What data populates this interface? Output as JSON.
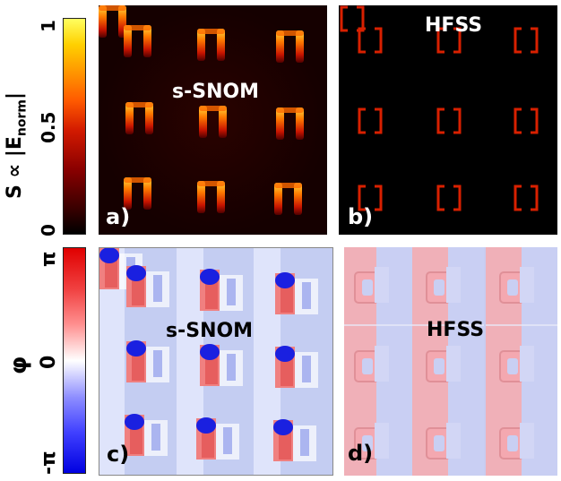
{
  "top_colorbar": {
    "axis_label": "S ∝ |E",
    "axis_sub": "norm",
    "axis_suffix": "|",
    "ticks": [
      "1",
      "0.5",
      "0"
    ]
  },
  "bottom_colorbar": {
    "axis_label": "φ",
    "ticks": [
      "π",
      "0",
      "-π"
    ]
  },
  "panels": {
    "a": {
      "title": "s-SNOM",
      "letter": "a)"
    },
    "b": {
      "title": "HFSS",
      "letter": "b)"
    },
    "c": {
      "title": "s-SNOM",
      "letter": "c)"
    },
    "d": {
      "title": "HFSS",
      "letter": "d)"
    }
  }
}
